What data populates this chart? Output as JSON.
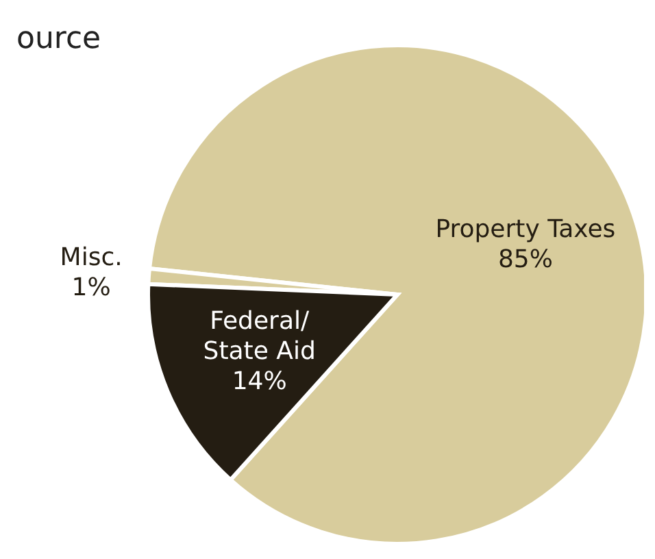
{
  "chart_data": {
    "type": "pie",
    "title": "ource",
    "categories": [
      "Property Taxes",
      "Misc.",
      "Federal/State Aid"
    ],
    "values": [
      85,
      1,
      14
    ],
    "value_labels": [
      "85%",
      "1%",
      "14%"
    ],
    "colors": [
      "#d8cc9c",
      "#d8cc9c",
      "#241d12"
    ]
  }
}
